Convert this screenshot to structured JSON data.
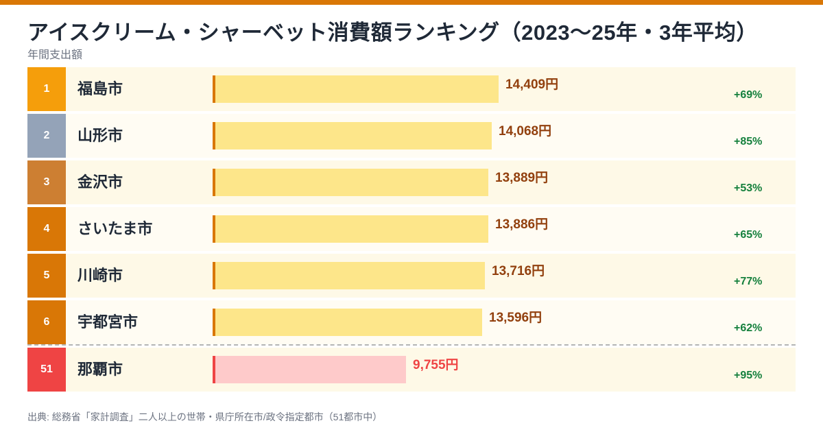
{
  "header": {
    "title": "アイスクリーム・シャーベット消費額ランキング（2023〜25年・3年平均）",
    "subtitle": "年間支出額"
  },
  "footer": {
    "source": "出典: 総務省「家計調査」二人以上の世帯・県庁所在市/政令指定都市（51都市中）"
  },
  "colors": {
    "accent": "#d97706",
    "bar_top": "#fde68a",
    "bar_edge_top": "#d97706",
    "value_top": "#92400e",
    "bar_low": "#fecaca",
    "bar_edge_low": "#ef4444",
    "value_low": "#ef4444",
    "change": "#15803d"
  },
  "chart_data": {
    "type": "bar",
    "orientation": "horizontal",
    "title": "アイスクリーム・シャーベット消費額ランキング（2023〜25年・3年平均）",
    "subtitle": "年間支出額",
    "unit": "円",
    "rows": [
      {
        "rank": "1",
        "city": "福島市",
        "value": 14409,
        "value_label": "14,409円",
        "change": "+69%",
        "rank_color": "#f59e0b",
        "row_bg": "#fef9e7"
      },
      {
        "rank": "2",
        "city": "山形市",
        "value": 14068,
        "value_label": "14,068円",
        "change": "+85%",
        "rank_color": "#94a3b8",
        "row_bg": "#fffcf3"
      },
      {
        "rank": "3",
        "city": "金沢市",
        "value": 13889,
        "value_label": "13,889円",
        "change": "+53%",
        "rank_color": "#cd7f32",
        "row_bg": "#fef9e7"
      },
      {
        "rank": "4",
        "city": "さいたま市",
        "value": 13886,
        "value_label": "13,886円",
        "change": "+65%",
        "rank_color": "#d97706",
        "row_bg": "#fffcf3"
      },
      {
        "rank": "5",
        "city": "川崎市",
        "value": 13716,
        "value_label": "13,716円",
        "change": "+77%",
        "rank_color": "#d97706",
        "row_bg": "#fef9e7"
      },
      {
        "rank": "6",
        "city": "宇都宮市",
        "value": 13596,
        "value_label": "13,596円",
        "change": "+62%",
        "rank_color": "#d97706",
        "row_bg": "#fffcf3"
      },
      {
        "rank": "51",
        "city": "那覇市",
        "value": 9755,
        "value_label": "9,755円",
        "change": "+95%",
        "rank_color": "#ef4444",
        "row_bg": "#fef9e7",
        "highlight": "low"
      }
    ]
  }
}
